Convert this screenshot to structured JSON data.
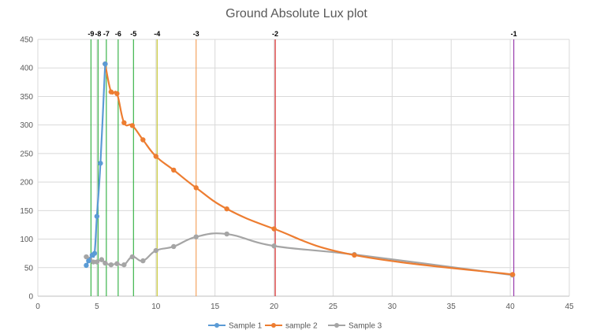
{
  "chart_data": {
    "type": "scatter",
    "title": "Ground Absolute Lux plot",
    "xlabel": "",
    "ylabel": "",
    "xlim": [
      0,
      45
    ],
    "ylim": [
      0,
      450
    ],
    "x_ticks": [
      "0",
      "5",
      "10",
      "15",
      "20",
      "25",
      "30",
      "35",
      "40",
      "45"
    ],
    "y_ticks": [
      "0",
      "50",
      "100",
      "150",
      "200",
      "250",
      "300",
      "350",
      "400",
      "450"
    ],
    "grid": true,
    "legend_position": "bottom",
    "series": [
      {
        "name": "Sample 1",
        "color": "#5b9bd5",
        "points": [
          {
            "x": 4.1,
            "y": 54
          },
          {
            "x": 4.3,
            "y": 62
          },
          {
            "x": 4.6,
            "y": 72
          },
          {
            "x": 4.8,
            "y": 75
          },
          {
            "x": 5.0,
            "y": 140
          },
          {
            "x": 5.3,
            "y": 233
          },
          {
            "x": 5.7,
            "y": 407
          }
        ]
      },
      {
        "name": "sample 2",
        "color": "#ed7d31",
        "points": [
          {
            "x": 5.7,
            "y": 407
          },
          {
            "x": 6.2,
            "y": 358
          },
          {
            "x": 6.7,
            "y": 355
          },
          {
            "x": 7.3,
            "y": 304
          },
          {
            "x": 8.0,
            "y": 299
          },
          {
            "x": 8.9,
            "y": 274
          },
          {
            "x": 10.0,
            "y": 245
          },
          {
            "x": 11.5,
            "y": 221
          },
          {
            "x": 13.4,
            "y": 190
          },
          {
            "x": 16.0,
            "y": 153
          },
          {
            "x": 20.0,
            "y": 118
          },
          {
            "x": 26.8,
            "y": 72
          },
          {
            "x": 40.2,
            "y": 38
          }
        ]
      },
      {
        "name": "Sample 3",
        "color": "#a5a5a5",
        "points": [
          {
            "x": 4.1,
            "y": 69
          },
          {
            "x": 4.4,
            "y": 65
          },
          {
            "x": 4.7,
            "y": 60
          },
          {
            "x": 5.0,
            "y": 60
          },
          {
            "x": 5.4,
            "y": 64
          },
          {
            "x": 5.7,
            "y": 58
          },
          {
            "x": 6.2,
            "y": 55
          },
          {
            "x": 6.7,
            "y": 57
          },
          {
            "x": 7.3,
            "y": 55
          },
          {
            "x": 8.0,
            "y": 69
          },
          {
            "x": 8.9,
            "y": 62
          },
          {
            "x": 10.0,
            "y": 80
          },
          {
            "x": 11.5,
            "y": 87
          },
          {
            "x": 13.4,
            "y": 104
          },
          {
            "x": 16.0,
            "y": 109
          },
          {
            "x": 20.0,
            "y": 88
          },
          {
            "x": 26.8,
            "y": 73
          },
          {
            "x": 40.2,
            "y": 37
          }
        ]
      }
    ],
    "reference_lines": [
      {
        "label": "-9",
        "x": 4.5,
        "color": "#3cb44b",
        "y_top": 450
      },
      {
        "label": "-8",
        "x": 5.1,
        "color": "#3cb44b",
        "y_top": 450
      },
      {
        "label": "-7",
        "x": 5.8,
        "color": "#3cb44b",
        "y_top": 450
      },
      {
        "label": "-6",
        "x": 6.8,
        "color": "#3cb44b",
        "y_top": 450
      },
      {
        "label": "-5",
        "x": 8.1,
        "color": "#3cb44b",
        "y_top": 450
      },
      {
        "label": "-4",
        "x": 10.1,
        "color": "#c8c832",
        "y_top": 450
      },
      {
        "label": "-3",
        "x": 13.4,
        "color": "#f4a460",
        "y_top": 450
      },
      {
        "label": "-2",
        "x": 20.1,
        "color": "#d62728",
        "y_top": 450
      },
      {
        "label": "-1",
        "x": 40.3,
        "color": "#9b3fae",
        "y_top": 450
      }
    ]
  }
}
